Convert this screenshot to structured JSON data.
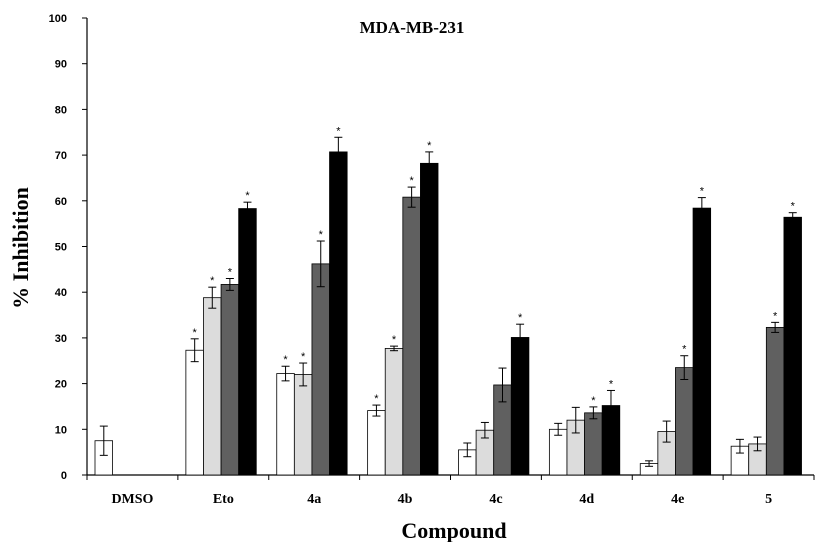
{
  "chart_data": {
    "type": "bar",
    "title": "MDA-MB-231",
    "xlabel": "Compound",
    "ylabel": "% Inhibition",
    "ylim": [
      0,
      100
    ],
    "yticks": [
      0,
      10,
      20,
      30,
      40,
      50,
      60,
      70,
      80,
      90,
      100
    ],
    "grid": false,
    "legend": "none",
    "categories": [
      "DMSO",
      "Eto",
      "4a",
      "4b",
      "4c",
      "4d",
      "4e",
      "5"
    ],
    "series": [
      {
        "color": "#ffffff",
        "values": [
          7.5,
          27.3,
          22.2,
          14.1,
          5.5,
          10.0,
          2.5,
          6.3
        ],
        "errors": [
          3.2,
          2.5,
          1.6,
          1.2,
          1.5,
          1.3,
          0.6,
          1.5
        ],
        "significant": [
          false,
          true,
          true,
          true,
          false,
          false,
          false,
          false
        ]
      },
      {
        "color": "#dcdcdc",
        "values": [
          null,
          38.8,
          22.0,
          27.7,
          9.8,
          12.0,
          9.5,
          6.8
        ],
        "errors": [
          null,
          2.3,
          2.5,
          0.5,
          1.7,
          2.8,
          2.3,
          1.5
        ],
        "significant": [
          false,
          true,
          true,
          true,
          false,
          false,
          false,
          false
        ]
      },
      {
        "color": "#606060",
        "values": [
          null,
          41.7,
          46.2,
          60.8,
          19.7,
          13.6,
          23.5,
          32.3
        ],
        "errors": [
          null,
          1.3,
          5.0,
          2.2,
          3.7,
          1.3,
          2.6,
          1.1
        ],
        "significant": [
          false,
          true,
          true,
          true,
          false,
          true,
          true,
          true
        ]
      },
      {
        "color": "#000000",
        "values": [
          null,
          58.3,
          70.7,
          68.2,
          30.1,
          15.2,
          58.4,
          56.4
        ],
        "errors": [
          null,
          1.4,
          3.2,
          2.5,
          2.9,
          3.3,
          2.3,
          1.0
        ],
        "significant": [
          false,
          true,
          true,
          true,
          true,
          true,
          true,
          true
        ]
      }
    ],
    "significance_marker": "*"
  }
}
